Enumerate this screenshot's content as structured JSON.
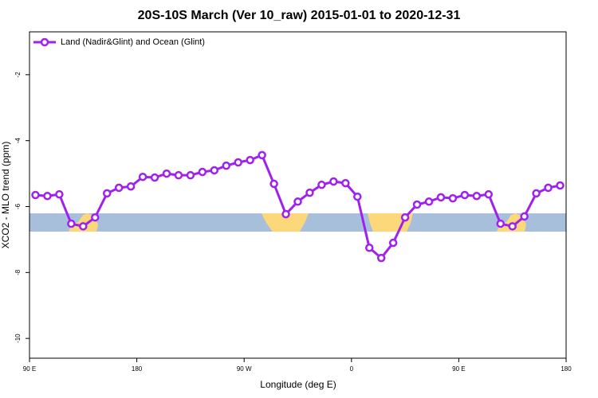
{
  "chart_data": {
    "type": "line",
    "title": "20S-10S March (Ver 10_raw)   2015-01-01 to 2020-12-31",
    "x_label": "Longitude (deg E)",
    "y_label": "XCO2 - MLO trend (ppm)",
    "legend_position": "top-left",
    "xlim": [
      90,
      540
    ],
    "xticks": [
      {
        "value": 90,
        "label": "90 E"
      },
      {
        "value": 180,
        "label": "180"
      },
      {
        "value": 270,
        "label": "90 W"
      },
      {
        "value": 360,
        "label": "0"
      },
      {
        "value": 450,
        "label": "90 E"
      },
      {
        "value": 540,
        "label": "180"
      }
    ],
    "ylim": [
      -10.6,
      -0.7
    ],
    "yticks": [
      -10,
      -8,
      -6,
      -4,
      -2
    ],
    "x": [
      95,
      105,
      115,
      125,
      135,
      145,
      155,
      165,
      175,
      185,
      195,
      205,
      215,
      225,
      235,
      245,
      255,
      265,
      275,
      285,
      295,
      305,
      315,
      325,
      335,
      345,
      355,
      365,
      375,
      385,
      395,
      405,
      415,
      425,
      435,
      445,
      455,
      465,
      475,
      485,
      495,
      505,
      515,
      525,
      535
    ],
    "series": [
      {
        "name": "Land (Nadir&Glint) and Ocean (Glint)",
        "color": "#a020f0",
        "values": [
          -5.65,
          -5.68,
          -5.63,
          -6.52,
          -6.6,
          -6.33,
          -5.6,
          -5.43,
          -5.39,
          -5.1,
          -5.12,
          -5.0,
          -5.05,
          -5.05,
          -4.95,
          -4.9,
          -4.76,
          -4.66,
          -4.59,
          -4.44,
          -5.31,
          -6.23,
          -5.85,
          -5.58,
          -5.34,
          -5.24,
          -5.29,
          -5.7,
          -7.25,
          -7.56,
          -7.1,
          -6.33,
          -5.94,
          -5.85,
          -5.72,
          -5.75,
          -5.65,
          -5.68,
          -5.63,
          -6.52,
          -6.6,
          -6.3,
          -5.6,
          -5.43,
          -5.36
        ]
      }
    ]
  }
}
